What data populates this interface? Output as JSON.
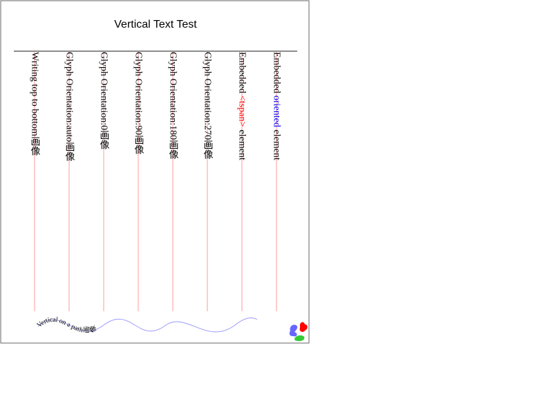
{
  "title": "Vertical Text Test",
  "columns": [
    {
      "name": "column-writing-top-to-bottom",
      "text": "Writing top to bottom画像",
      "orientation": "auto"
    },
    {
      "name": "column-orientation-auto",
      "text": "Glyph Orientation:auto画像",
      "orientation": "auto"
    },
    {
      "name": "column-orientation-0",
      "text": "Glyph Orientation:0画像",
      "orientation": "0"
    },
    {
      "name": "column-orientation-90",
      "text": "Glyph Orientation:90画像",
      "orientation": "90"
    },
    {
      "name": "column-orientation-180",
      "text": "Glyph Orientation:180画像",
      "orientation": "180"
    },
    {
      "name": "column-orientation-270",
      "text": "Glyph Orientation:270画像",
      "orientation": "270"
    }
  ],
  "embedded_tspan": {
    "before": "Embedded ",
    "tspan": "<tspan>",
    "after": " element",
    "tspan_color": "#ff0000"
  },
  "embedded_oriented": {
    "before": "Embedded ",
    "oriented": "oriented",
    "after": " element",
    "oriented_color": "#0000ff"
  },
  "path_text": "Vertical on a path画像",
  "colors": {
    "guide_line": "#ff9999",
    "curve": "#9999ff",
    "rule": "#666666",
    "frame": "#666666",
    "blob_blue": "#6666ff",
    "blob_red": "#ff0000",
    "blob_green": "#33cc33"
  }
}
